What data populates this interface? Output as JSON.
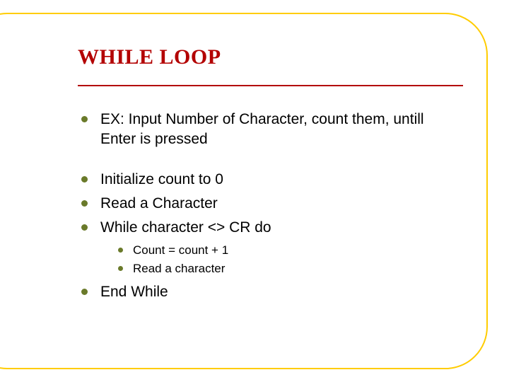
{
  "slide": {
    "title": "WHILE LOOP",
    "title_color": "#b30000",
    "title_fontsize": 30,
    "underline_color": "#b30000",
    "frame_border_color": "#ffcc00",
    "background_color": "#ffffff",
    "body_text_color": "#000000",
    "bullet_color": "#6a7a2a",
    "body_fontsize": 21,
    "sub_fontsize": 17,
    "bullets": [
      {
        "text": "EX: Input Number of Character, count them, untill Enter is pressed",
        "spaced_after": true
      },
      {
        "text": "Initialize count to 0"
      },
      {
        "text": "Read a Character"
      },
      {
        "text": "While character <> CR do",
        "sub": [
          {
            "text": "Count = count + 1"
          },
          {
            "text": "Read a character"
          }
        ]
      },
      {
        "text": "End While"
      }
    ]
  }
}
